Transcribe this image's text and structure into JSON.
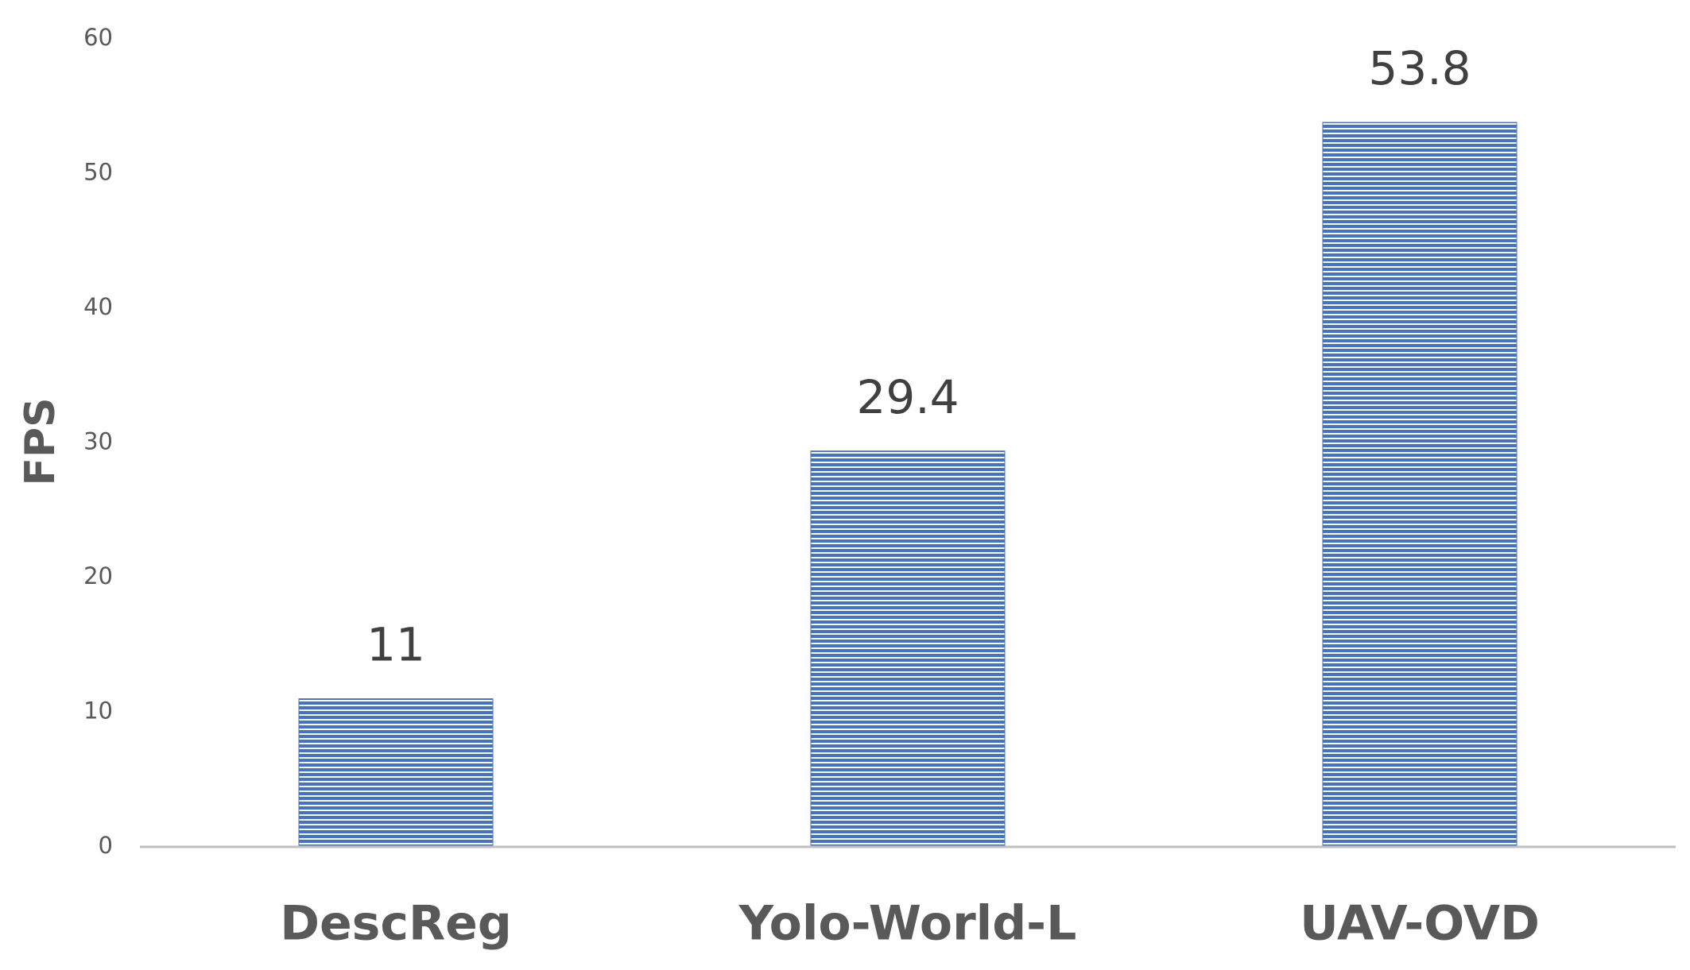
{
  "chart_data": {
    "type": "bar",
    "y_label": "FPS",
    "categories": [
      "DescReg",
      "Yolo-World-L",
      "UAV-OVD"
    ],
    "values": [
      11,
      29.4,
      53.8
    ],
    "color": "#4472c4",
    "ylim": [
      0,
      60
    ],
    "yticks": [
      0,
      10,
      20,
      30,
      40,
      50,
      60
    ],
    "grid": false
  }
}
